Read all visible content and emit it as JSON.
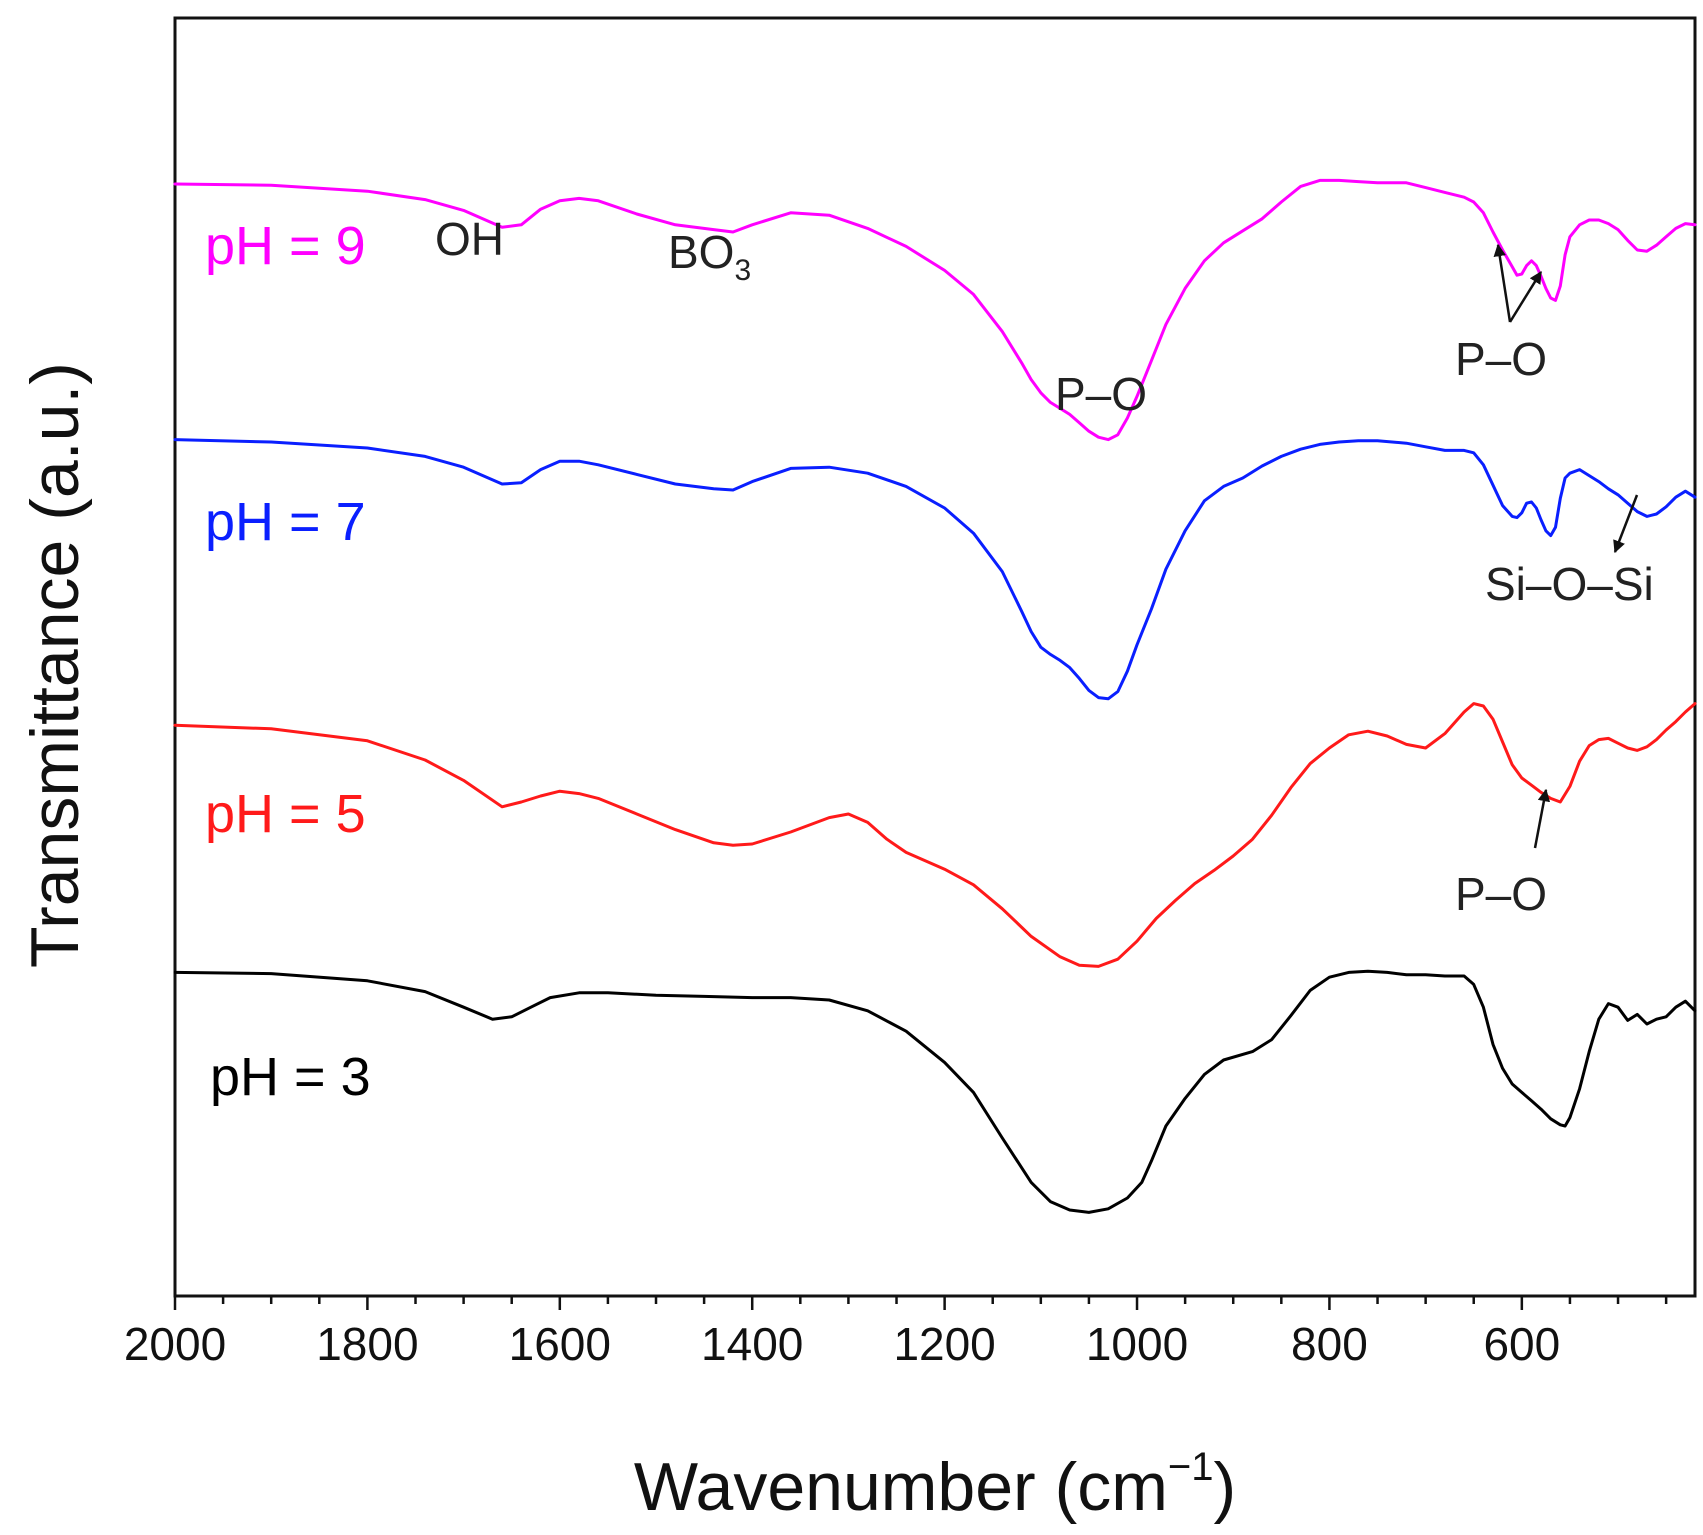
{
  "chart_data": {
    "type": "line",
    "title": "",
    "xlabel": "Wavenumber (cm",
    "xlabel_sup": "−1",
    "xlabel_close": ")",
    "ylabel": "Transmittance (a.u.)",
    "xlim": [
      2000,
      420
    ],
    "ylim": [
      0,
      100
    ],
    "x_ticks": [
      2000,
      1800,
      1600,
      1400,
      1200,
      1000,
      800,
      600
    ],
    "x_tick_labels": [
      "2000",
      "1800",
      "1600",
      "1400",
      "1200",
      "1000",
      "800",
      "600"
    ],
    "y_ticks_shown": false,
    "grid": false,
    "legend": "none",
    "series": [
      {
        "name": "pH = 9",
        "color": "#ff00ff",
        "x": [
          2000,
          1900,
          1800,
          1740,
          1700,
          1660,
          1640,
          1620,
          1600,
          1580,
          1560,
          1520,
          1480,
          1440,
          1420,
          1400,
          1360,
          1320,
          1280,
          1240,
          1200,
          1170,
          1140,
          1120,
          1110,
          1100,
          1090,
          1080,
          1070,
          1060,
          1050,
          1040,
          1030,
          1020,
          1010,
          1000,
          985,
          970,
          950,
          930,
          910,
          890,
          870,
          850,
          830,
          810,
          790,
          770,
          750,
          720,
          700,
          680,
          660,
          650,
          640,
          630,
          620,
          610,
          605,
          600,
          595,
          590,
          585,
          580,
          575,
          570,
          565,
          560,
          555,
          550,
          540,
          530,
          520,
          510,
          500,
          490,
          480,
          470,
          460,
          450,
          440,
          430,
          420
        ],
        "y": [
          93.0,
          92.9,
          92.4,
          91.7,
          90.8,
          89.4,
          89.6,
          90.9,
          91.6,
          91.8,
          91.6,
          90.5,
          89.6,
          89.2,
          89.0,
          89.6,
          90.6,
          90.4,
          89.3,
          87.8,
          85.8,
          83.8,
          80.7,
          78.1,
          76.7,
          75.6,
          74.8,
          74.3,
          73.8,
          73.1,
          72.4,
          71.9,
          71.7,
          72.1,
          73.5,
          75.3,
          78.3,
          81.3,
          84.3,
          86.6,
          88.1,
          89.1,
          90.1,
          91.5,
          92.8,
          93.3,
          93.3,
          93.2,
          93.1,
          93.1,
          92.7,
          92.3,
          91.9,
          91.5,
          90.6,
          89.0,
          87.5,
          86.1,
          85.4,
          85.5,
          86.2,
          86.6,
          86.2,
          85.3,
          84.3,
          83.5,
          83.3,
          84.5,
          87.1,
          88.6,
          89.6,
          90.0,
          90.0,
          89.7,
          89.2,
          88.3,
          87.5,
          87.4,
          87.9,
          88.6,
          89.3,
          89.7,
          89.6
        ],
        "label_color": "#ff00ff"
      },
      {
        "name": "pH = 7",
        "color": "#0a1fff",
        "x": [
          2000,
          1900,
          1800,
          1740,
          1700,
          1660,
          1640,
          1620,
          1600,
          1580,
          1560,
          1520,
          1480,
          1440,
          1420,
          1400,
          1360,
          1320,
          1280,
          1240,
          1200,
          1170,
          1140,
          1120,
          1110,
          1100,
          1090,
          1080,
          1070,
          1060,
          1050,
          1040,
          1030,
          1020,
          1010,
          1000,
          985,
          970,
          950,
          930,
          910,
          890,
          870,
          850,
          830,
          810,
          790,
          770,
          750,
          720,
          700,
          680,
          660,
          650,
          640,
          630,
          620,
          610,
          605,
          600,
          595,
          590,
          585,
          580,
          575,
          570,
          565,
          560,
          555,
          550,
          540,
          530,
          520,
          510,
          500,
          490,
          480,
          470,
          460,
          450,
          440,
          430,
          420
        ],
        "y": [
          71.7,
          71.5,
          71.0,
          70.3,
          69.4,
          68.0,
          68.1,
          69.2,
          69.9,
          69.9,
          69.6,
          68.8,
          68.0,
          67.6,
          67.5,
          68.2,
          69.3,
          69.4,
          68.9,
          67.8,
          66.0,
          63.9,
          60.7,
          57.4,
          55.7,
          54.4,
          53.8,
          53.3,
          52.7,
          51.8,
          50.8,
          50.2,
          50.1,
          50.7,
          52.4,
          54.6,
          57.6,
          60.9,
          64.1,
          66.6,
          67.8,
          68.5,
          69.5,
          70.3,
          70.9,
          71.3,
          71.5,
          71.6,
          71.6,
          71.4,
          71.1,
          70.8,
          70.8,
          70.6,
          69.6,
          67.9,
          66.2,
          65.3,
          65.2,
          65.6,
          66.4,
          66.5,
          66.0,
          65.0,
          64.1,
          63.7,
          64.4,
          66.8,
          68.5,
          68.9,
          69.2,
          68.7,
          68.2,
          67.6,
          67.1,
          66.4,
          65.7,
          65.3,
          65.5,
          66.1,
          66.9,
          67.4,
          66.9
        ],
        "label_color": "#0a1fff"
      },
      {
        "name": "pH = 5",
        "color": "#ff1a1a",
        "x": [
          2000,
          1900,
          1800,
          1740,
          1700,
          1660,
          1640,
          1620,
          1600,
          1580,
          1560,
          1520,
          1480,
          1440,
          1420,
          1400,
          1360,
          1320,
          1300,
          1280,
          1260,
          1240,
          1200,
          1170,
          1140,
          1110,
          1080,
          1060,
          1040,
          1020,
          1000,
          980,
          960,
          940,
          920,
          900,
          880,
          860,
          840,
          820,
          800,
          780,
          760,
          740,
          720,
          700,
          680,
          660,
          650,
          640,
          630,
          620,
          610,
          600,
          590,
          580,
          570,
          560,
          550,
          540,
          530,
          520,
          510,
          500,
          490,
          480,
          470,
          460,
          450,
          440,
          430,
          420
        ],
        "y": [
          47.9,
          47.6,
          46.6,
          45.0,
          43.3,
          41.1,
          41.5,
          42.0,
          42.4,
          42.2,
          41.8,
          40.5,
          39.2,
          38.1,
          37.9,
          38.0,
          39.0,
          40.2,
          40.5,
          39.8,
          38.4,
          37.3,
          35.9,
          34.6,
          32.6,
          30.3,
          28.6,
          27.9,
          27.8,
          28.4,
          29.9,
          31.8,
          33.3,
          34.7,
          35.8,
          37.0,
          38.4,
          40.4,
          42.7,
          44.7,
          46.0,
          47.1,
          47.4,
          47.0,
          46.3,
          46.0,
          47.2,
          49.0,
          49.7,
          49.5,
          48.4,
          46.5,
          44.6,
          43.5,
          42.9,
          42.3,
          41.8,
          41.5,
          42.8,
          44.9,
          46.2,
          46.7,
          46.8,
          46.4,
          46.0,
          45.8,
          46.1,
          46.7,
          47.5,
          48.2,
          49.0,
          49.7
        ],
        "label_color": "#ff1a1a"
      },
      {
        "name": "pH = 3",
        "color": "#000000",
        "x": [
          2000,
          1900,
          1800,
          1740,
          1700,
          1670,
          1650,
          1630,
          1610,
          1580,
          1550,
          1500,
          1450,
          1400,
          1360,
          1320,
          1280,
          1240,
          1200,
          1170,
          1140,
          1110,
          1090,
          1070,
          1050,
          1030,
          1010,
          995,
          985,
          970,
          950,
          930,
          910,
          880,
          860,
          840,
          820,
          800,
          780,
          760,
          740,
          720,
          700,
          680,
          660,
          650,
          640,
          630,
          620,
          610,
          600,
          590,
          580,
          570,
          560,
          555,
          550,
          540,
          530,
          520,
          510,
          500,
          490,
          480,
          470,
          460,
          450,
          440,
          430,
          420
        ],
        "y": [
          27.3,
          27.2,
          26.6,
          25.7,
          24.4,
          23.4,
          23.6,
          24.4,
          25.2,
          25.6,
          25.6,
          25.4,
          25.3,
          25.2,
          25.2,
          25.0,
          24.1,
          22.4,
          19.8,
          17.3,
          13.5,
          9.8,
          8.2,
          7.5,
          7.3,
          7.6,
          8.5,
          9.8,
          11.6,
          14.5,
          16.8,
          18.8,
          20.0,
          20.7,
          21.7,
          23.7,
          25.8,
          26.9,
          27.3,
          27.4,
          27.3,
          27.1,
          27.1,
          27.0,
          27.0,
          26.3,
          24.4,
          21.3,
          19.3,
          18.0,
          17.3,
          16.6,
          15.9,
          15.1,
          14.6,
          14.5,
          15.2,
          17.6,
          20.7,
          23.4,
          24.7,
          24.4,
          23.3,
          23.8,
          23.0,
          23.4,
          23.6,
          24.4,
          24.9,
          24.1
        ],
        "label_color": "#000000"
      }
    ],
    "annotations": [
      {
        "text": "OH",
        "sub": ""
      },
      {
        "text": "BO",
        "sub": "3"
      },
      {
        "text": "P–O",
        "sub": ""
      },
      {
        "text": "P–O",
        "sub": ""
      },
      {
        "text": "Si–O–Si",
        "sub": ""
      },
      {
        "text": "P–O",
        "sub": ""
      }
    ]
  }
}
